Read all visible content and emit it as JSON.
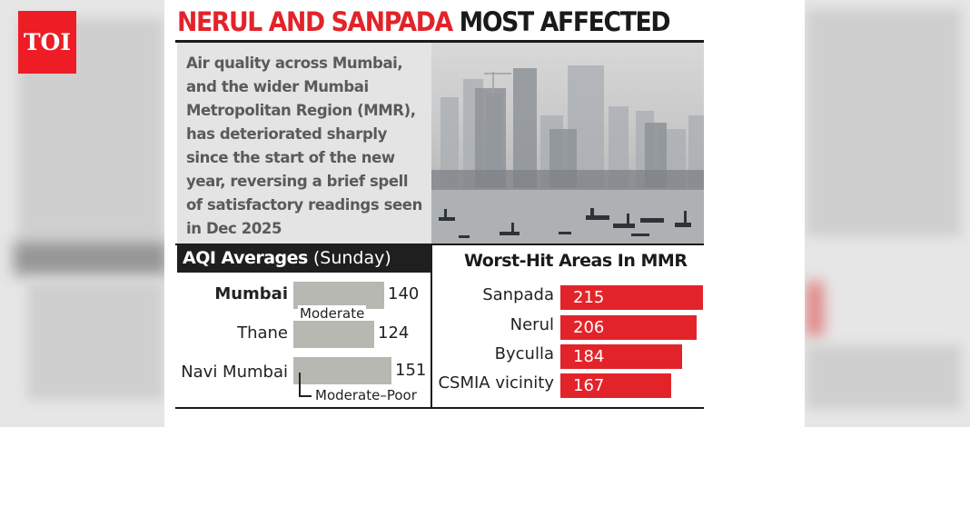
{
  "logo": {
    "text": "TOI"
  },
  "headline": {
    "part1": "NERUL AND SANPADA",
    "part2": "MOST AFFECTED"
  },
  "intro": "Air quality across Mumbai, and the wider Mumbai Metropolitan Region (MMR), has deteriorated sharply since the start of the new year, reversing a brief spell of satisfactory readings seen in Dec 2025",
  "colors": {
    "accent_red": "#e3232a",
    "bar_grey": "#b8b8b3",
    "header_dark": "#1f1f1f"
  },
  "chart_data": [
    {
      "type": "bar",
      "orientation": "horizontal",
      "title_bold": "AQI Averages",
      "title_suffix": "(Sunday)",
      "categories": [
        "Mumbai",
        "Thane",
        "Navi Mumbai"
      ],
      "values": [
        140,
        124,
        151
      ],
      "xlim": [
        0,
        160
      ],
      "annotations": [
        "Moderate",
        "Moderate–Poor"
      ]
    },
    {
      "type": "bar",
      "orientation": "horizontal",
      "title": "Worst-Hit Areas In MMR",
      "categories": [
        "Sanpada",
        "Nerul",
        "Byculla",
        "CSMIA vicinity"
      ],
      "values": [
        215,
        206,
        184,
        167
      ],
      "xlim": [
        0,
        215
      ]
    }
  ]
}
